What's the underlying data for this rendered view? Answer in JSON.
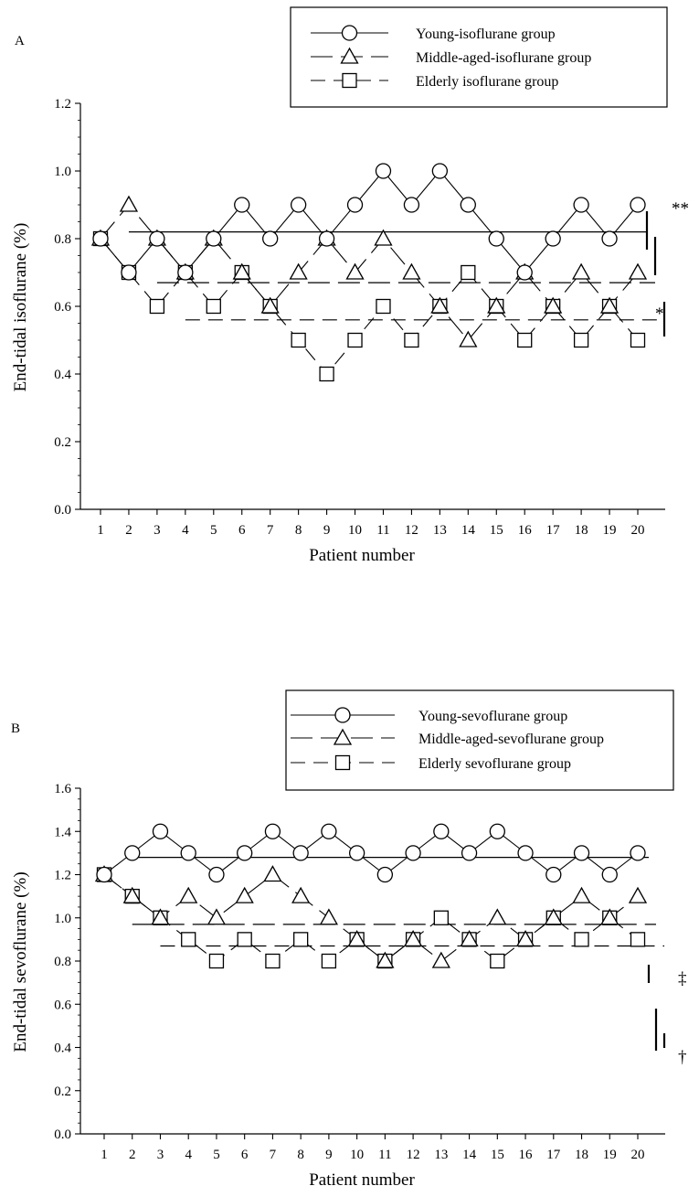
{
  "chart_data": [
    {
      "panel_label": "A",
      "type": "line",
      "xlabel": "Patient number",
      "ylabel": "End-tidal isoflurane (%)",
      "x": [
        1,
        2,
        3,
        4,
        5,
        6,
        7,
        8,
        9,
        10,
        11,
        12,
        13,
        14,
        15,
        16,
        17,
        18,
        19,
        20
      ],
      "ylim": [
        0,
        1.2
      ],
      "yticks": [
        "0.0",
        "0.2",
        "0.4",
        "0.6",
        "0.8",
        "1.0",
        "1.2"
      ],
      "series": [
        {
          "name": "Young-isoflurane group",
          "marker": "circle",
          "dash": "solid",
          "mean": 0.82,
          "values": [
            0.8,
            0.7,
            0.8,
            0.7,
            0.8,
            0.9,
            0.8,
            0.9,
            0.8,
            0.9,
            1.0,
            0.9,
            1.0,
            0.9,
            0.8,
            0.7,
            0.8,
            0.9,
            0.8,
            0.9
          ]
        },
        {
          "name": "Middle-aged-isoflurane group",
          "marker": "triangle",
          "dash": "long",
          "mean": 0.67,
          "values": [
            0.8,
            0.9,
            0.8,
            0.7,
            0.8,
            0.7,
            0.6,
            0.7,
            0.8,
            0.7,
            0.8,
            0.7,
            0.6,
            0.5,
            0.6,
            0.7,
            0.6,
            0.7,
            0.6,
            0.7
          ]
        },
        {
          "name": "Elderly isoflurane group",
          "marker": "square",
          "dash": "medium",
          "mean": 0.56,
          "values": [
            0.8,
            0.7,
            0.6,
            0.7,
            0.6,
            0.7,
            0.6,
            0.5,
            0.4,
            0.5,
            0.6,
            0.5,
            0.6,
            0.7,
            0.6,
            0.5,
            0.6,
            0.5,
            0.6,
            0.5
          ]
        }
      ],
      "significance": [
        "**",
        "*"
      ],
      "legend_position": "top-right"
    },
    {
      "panel_label": "B",
      "type": "line",
      "xlabel": "Patient number",
      "ylabel": "End-tidal sevoflurane (%)",
      "x": [
        1,
        2,
        3,
        4,
        5,
        6,
        7,
        8,
        9,
        10,
        11,
        12,
        13,
        14,
        15,
        16,
        17,
        18,
        19,
        20
      ],
      "ylim": [
        0,
        1.6
      ],
      "yticks": [
        "0.0",
        "0.2",
        "0.4",
        "0.6",
        "0.8",
        "1.0",
        "1.2",
        "1.4",
        "1.6"
      ],
      "series": [
        {
          "name": "Young-sevoflurane group",
          "marker": "circle",
          "dash": "solid",
          "mean": 1.28,
          "values": [
            1.2,
            1.3,
            1.4,
            1.3,
            1.2,
            1.3,
            1.4,
            1.3,
            1.4,
            1.3,
            1.2,
            1.3,
            1.4,
            1.3,
            1.4,
            1.3,
            1.2,
            1.3,
            1.2,
            1.3
          ]
        },
        {
          "name": "Middle-aged-sevoflurane group",
          "marker": "triangle",
          "dash": "long",
          "mean": 0.97,
          "values": [
            1.2,
            1.1,
            1.0,
            1.1,
            1.0,
            1.1,
            1.2,
            1.1,
            1.0,
            0.9,
            0.8,
            0.9,
            0.8,
            0.9,
            1.0,
            0.9,
            1.0,
            1.1,
            1.0,
            1.1
          ]
        },
        {
          "name": "Elderly sevoflurane group",
          "marker": "square",
          "dash": "medium",
          "mean": 0.87,
          "values": [
            1.2,
            1.1,
            1.0,
            0.9,
            0.8,
            0.9,
            0.8,
            0.9,
            0.8,
            0.9,
            0.8,
            0.9,
            1.0,
            0.9,
            0.8,
            0.9,
            1.0,
            0.9,
            1.0,
            0.9
          ]
        }
      ],
      "significance": [
        "‡",
        "†"
      ],
      "legend_position": "top-right"
    }
  ]
}
